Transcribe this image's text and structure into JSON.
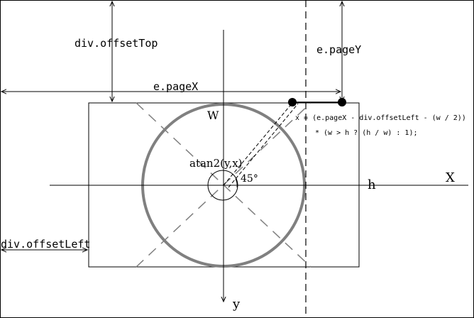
{
  "labels": {
    "offset_top": "div.offsetTop",
    "page_y": "e.pageY",
    "page_x": "e.pageX",
    "offset_left": "div.offsetLeft",
    "w": "W",
    "h": "h",
    "axis_x": "X",
    "axis_y": "y",
    "atan": "atan2(y,x)",
    "angle": "45°",
    "formula_line1": "x = (e.pageX - div.offsetLeft - (w / 2))",
    "formula_line2": "* (w > h ? (h / w) : 1);"
  },
  "colors": {
    "line": "#000000",
    "circle": "#808080",
    "diagonal": "#808080",
    "background": "#ffffff"
  }
}
